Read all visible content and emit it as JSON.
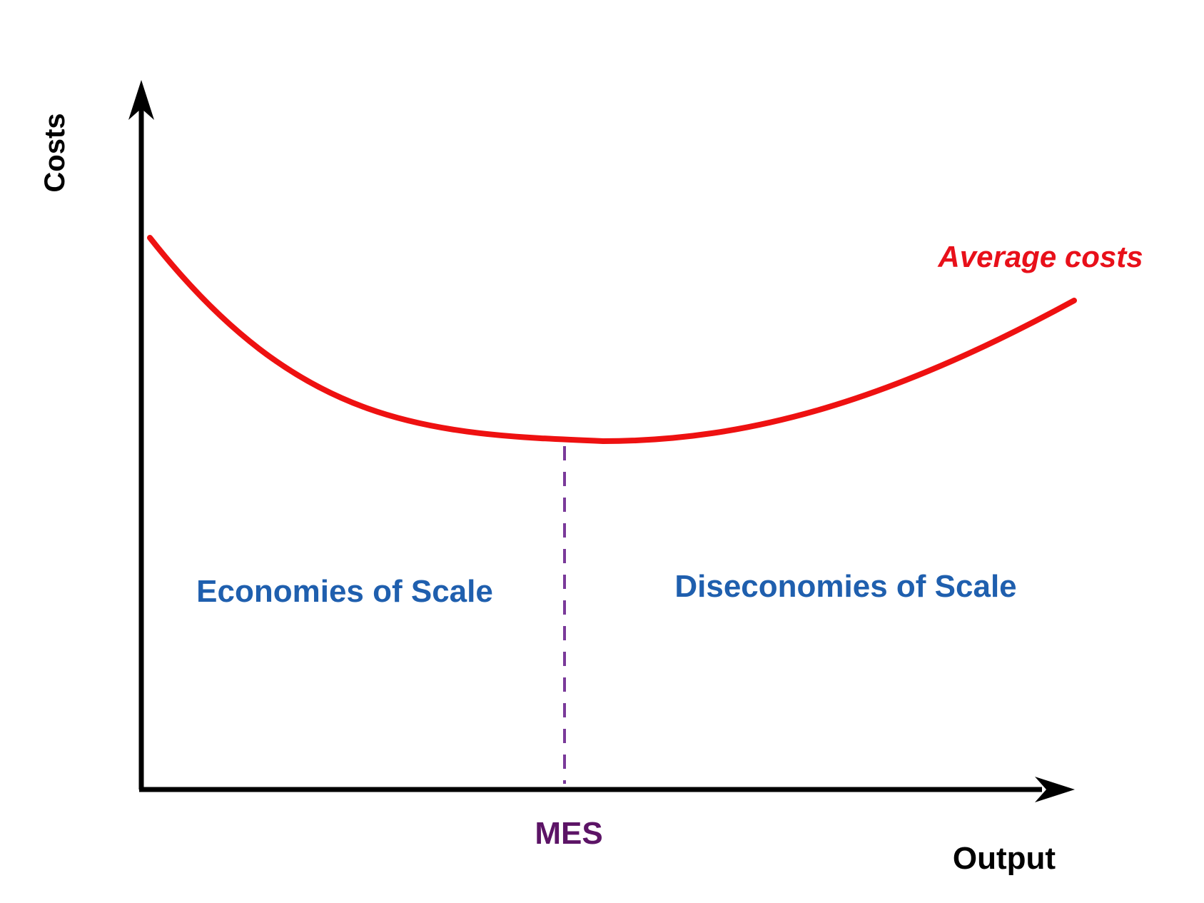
{
  "diagram": {
    "y_axis_label": "Costs",
    "x_axis_label": "Output",
    "curve_label": "Average costs",
    "min_point_label": "MES",
    "left_region_label": "Economies of Scale",
    "right_region_label": "Diseconomies of Scale"
  },
  "colors": {
    "axis": "#000000",
    "curve": "#ee1111",
    "min_point_line": "#7a3a9a",
    "min_point_label": "#5c1466",
    "region_label": "#1f5fae",
    "curve_label": "#e8101a"
  }
}
